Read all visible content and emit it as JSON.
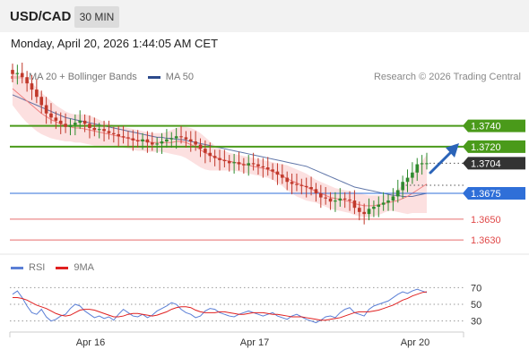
{
  "header": {
    "symbol": "USD/CAD",
    "timeframe": "30 MIN",
    "datetime": "Monday, April 20, 2026 1:44:05 AM CET"
  },
  "legend": {
    "ma20_label": "MA 20 + Bollinger Bands",
    "ma20_color": "#f08080",
    "ma50_label": "MA 50",
    "ma50_color": "#2c4a8c",
    "rsi_label": "RSI",
    "rsi_color": "#5b7fd6",
    "rsi_ma_label": "9MA",
    "rsi_ma_color": "#e02020"
  },
  "copyright": "Research © 2026 Trading Central",
  "chart_data": {
    "type": "candlestick",
    "y_range": [
      1.3618,
      1.3782
    ],
    "x_tick_labels": [
      "Apr 16",
      "Apr 17",
      "Apr 20"
    ],
    "current_price": 1.3704,
    "levels": [
      {
        "value": 1.374,
        "label": "1.3740",
        "kind": "resistance",
        "color": "#4a9a1a"
      },
      {
        "value": 1.372,
        "label": "1.3720",
        "kind": "resistance",
        "color": "#4a9a1a"
      },
      {
        "value": 1.3704,
        "label": "1.3704",
        "kind": "current",
        "color": "#333333"
      },
      {
        "value": 1.3675,
        "label": "1.3675",
        "kind": "pivot",
        "color": "#2f6fd8"
      },
      {
        "value": 1.365,
        "label": "1.3650",
        "kind": "support",
        "color": "#e04848"
      },
      {
        "value": 1.363,
        "label": "1.3630",
        "kind": "support",
        "color": "#e04848"
      }
    ],
    "closes": [
      1.379,
      1.3791,
      1.3787,
      1.3781,
      1.3775,
      1.3768,
      1.376,
      1.3752,
      1.3748,
      1.3745,
      1.3742,
      1.3739,
      1.3741,
      1.3743,
      1.3745,
      1.3742,
      1.3738,
      1.3736,
      1.3737,
      1.3735,
      1.3733,
      1.3732,
      1.373,
      1.3729,
      1.3728,
      1.3726,
      1.3725,
      1.3727,
      1.3724,
      1.3722,
      1.3723,
      1.3725,
      1.3727,
      1.3728,
      1.373,
      1.3729,
      1.3727,
      1.3725,
      1.3722,
      1.3718,
      1.3714,
      1.3711,
      1.3709,
      1.3707,
      1.3706,
      1.3704,
      1.3705,
      1.3703,
      1.3702,
      1.3704,
      1.3703,
      1.3701,
      1.37,
      1.3698,
      1.3696,
      1.3693,
      1.369,
      1.3686,
      1.3684,
      1.3683,
      1.3682,
      1.3681,
      1.3679,
      1.3675,
      1.3671,
      1.367,
      1.3667,
      1.3668,
      1.367,
      1.3669,
      1.3668,
      1.3661,
      1.3657,
      1.3655,
      1.366,
      1.3662,
      1.3664,
      1.3666,
      1.3668,
      1.3672,
      1.3678,
      1.3686,
      1.369,
      1.3695,
      1.3703,
      1.3704,
      1.3704
    ],
    "ma20": [
      1.3776,
      1.3772,
      1.3768,
      1.3764,
      1.376,
      1.3756,
      1.3752,
      1.3749,
      1.3746,
      1.3744,
      1.3742,
      1.374,
      1.3739,
      1.3738,
      1.3738,
      1.3737,
      1.3736,
      1.3735,
      1.3734,
      1.3733,
      1.3732,
      1.3731,
      1.373,
      1.3729,
      1.3728,
      1.3727,
      1.3726,
      1.3726,
      1.3725,
      1.3724,
      1.3724,
      1.3724,
      1.3724,
      1.3724,
      1.3725,
      1.3725,
      1.3724,
      1.3722,
      1.372,
      1.3717,
      1.3714,
      1.3712,
      1.371,
      1.3708,
      1.3707,
      1.3706,
      1.3705,
      1.3704,
      1.3703,
      1.3702,
      1.3701,
      1.37,
      1.3699,
      1.3698,
      1.3696,
      1.3694,
      1.3692,
      1.3689,
      1.3687,
      1.3685,
      1.3683,
      1.3681,
      1.3679,
      1.3677,
      1.3675,
      1.3673,
      1.3671,
      1.367,
      1.3669,
      1.3668,
      1.3667,
      1.3665,
      1.3664,
      1.3663,
      1.3663,
      1.3663,
      1.3664,
      1.3665,
      1.3666,
      1.3667,
      1.3668,
      1.367,
      1.3672,
      1.3675,
      1.3678,
      1.3681,
      1.3684
    ],
    "bb_upper": [
      1.3792,
      1.379,
      1.3788,
      1.3785,
      1.3781,
      1.3777,
      1.3772,
      1.3768,
      1.3764,
      1.376,
      1.3757,
      1.3754,
      1.3752,
      1.3751,
      1.3751,
      1.3751,
      1.375,
      1.3748,
      1.3746,
      1.3744,
      1.3742,
      1.3741,
      1.374,
      1.3739,
      1.3738,
      1.3737,
      1.3736,
      1.3735,
      1.3734,
      1.3733,
      1.3733,
      1.3733,
      1.3734,
      1.3736,
      1.3738,
      1.3739,
      1.3739,
      1.3738,
      1.3736,
      1.3733,
      1.3729,
      1.3725,
      1.3721,
      1.3718,
      1.3716,
      1.3714,
      1.3713,
      1.3712,
      1.3711,
      1.371,
      1.3709,
      1.3708,
      1.3707,
      1.3706,
      1.3705,
      1.3704,
      1.3703,
      1.3702,
      1.37,
      1.3698,
      1.3696,
      1.3694,
      1.3691,
      1.3688,
      1.3686,
      1.3684,
      1.3682,
      1.368,
      1.3679,
      1.3678,
      1.3677,
      1.3676,
      1.3675,
      1.3674,
      1.3673,
      1.3673,
      1.3673,
      1.3673,
      1.3674,
      1.3676,
      1.3679,
      1.3683,
      1.3688,
      1.3694,
      1.37,
      1.3706,
      1.3712
    ],
    "bb_lower": [
      1.376,
      1.3754,
      1.3748,
      1.3743,
      1.3739,
      1.3735,
      1.3732,
      1.373,
      1.3728,
      1.3727,
      1.3726,
      1.3725,
      1.3725,
      1.3724,
      1.3724,
      1.3723,
      1.3722,
      1.3721,
      1.3721,
      1.3721,
      1.3721,
      1.3721,
      1.372,
      1.3719,
      1.3718,
      1.3717,
      1.3716,
      1.3716,
      1.3715,
      1.3715,
      1.3715,
      1.3715,
      1.3714,
      1.3713,
      1.3712,
      1.3711,
      1.3709,
      1.3706,
      1.3703,
      1.37,
      1.3698,
      1.3697,
      1.3697,
      1.3697,
      1.3697,
      1.3697,
      1.3697,
      1.3696,
      1.3695,
      1.3694,
      1.3693,
      1.3692,
      1.3691,
      1.369,
      1.3688,
      1.3685,
      1.3682,
      1.3678,
      1.3675,
      1.3672,
      1.367,
      1.3668,
      1.3667,
      1.3666,
      1.3664,
      1.3662,
      1.366,
      1.3659,
      1.3658,
      1.3657,
      1.3656,
      1.3654,
      1.3653,
      1.3652,
      1.3652,
      1.3653,
      1.3654,
      1.3656,
      1.3658,
      1.3658,
      1.3657,
      1.3656,
      1.3655,
      1.3656,
      1.3656,
      1.3656,
      1.3656
    ],
    "ma50": [
      1.377,
      1.3768,
      1.3766,
      1.3764,
      1.3762,
      1.376,
      1.3758,
      1.3756,
      1.3754,
      1.3752,
      1.375,
      1.3748,
      1.3747,
      1.3746,
      1.3745,
      1.3744,
      1.3743,
      1.3742,
      1.3741,
      1.374,
      1.3739,
      1.3738,
      1.3737,
      1.3736,
      1.3735,
      1.3734,
      1.3733,
      1.3732,
      1.3731,
      1.373,
      1.3729,
      1.3729,
      1.3728,
      1.3728,
      1.3727,
      1.3727,
      1.3726,
      1.3725,
      1.3724,
      1.3723,
      1.3722,
      1.3721,
      1.372,
      1.3719,
      1.3718,
      1.3717,
      1.3716,
      1.3715,
      1.3714,
      1.3713,
      1.3712,
      1.3711,
      1.371,
      1.3709,
      1.3708,
      1.3707,
      1.3706,
      1.3705,
      1.3704,
      1.3703,
      1.3702,
      1.3701,
      1.3699,
      1.3697,
      1.3695,
      1.3693,
      1.3691,
      1.3689,
      1.3687,
      1.3685,
      1.3683,
      1.3681,
      1.368,
      1.3679,
      1.3678,
      1.3677,
      1.3676,
      1.3675,
      1.3674,
      1.3673,
      1.3673,
      1.3672,
      1.3672,
      1.3672,
      1.3673,
      1.3674,
      1.3675
    ],
    "rsi_ticks": [
      70,
      50,
      30
    ],
    "rsi": [
      62,
      66,
      58,
      48,
      40,
      38,
      44,
      35,
      30,
      32,
      36,
      38,
      45,
      50,
      48,
      42,
      38,
      34,
      36,
      33,
      35,
      31,
      38,
      44,
      40,
      36,
      35,
      38,
      34,
      37,
      42,
      45,
      48,
      52,
      50,
      44,
      40,
      38,
      34,
      36,
      42,
      45,
      44,
      40,
      38,
      36,
      35,
      38,
      40,
      42,
      40,
      38,
      36,
      38,
      40,
      36,
      34,
      32,
      36,
      38,
      35,
      32,
      30,
      28,
      31,
      35,
      36,
      34,
      40,
      44,
      46,
      40,
      38,
      36,
      44,
      48,
      50,
      52,
      54,
      58,
      62,
      65,
      63,
      66,
      68,
      66,
      64
    ],
    "rsi_ma": [
      58,
      58,
      57,
      55,
      52,
      49,
      47,
      45,
      42,
      39,
      37,
      36,
      37,
      40,
      43,
      44,
      44,
      43,
      41,
      39,
      37,
      35,
      35,
      36,
      38,
      39,
      39,
      38,
      37,
      36,
      37,
      39,
      41,
      44,
      46,
      47,
      47,
      46,
      43,
      41,
      40,
      40,
      40,
      41,
      41,
      40,
      39,
      38,
      38,
      39,
      40,
      40,
      40,
      39,
      38,
      38,
      37,
      36,
      35,
      35,
      35,
      34,
      33,
      32,
      31,
      31,
      32,
      33,
      34,
      36,
      38,
      40,
      41,
      41,
      41,
      42,
      43,
      45,
      47,
      49,
      52,
      55,
      57,
      60,
      62,
      64,
      65
    ]
  }
}
